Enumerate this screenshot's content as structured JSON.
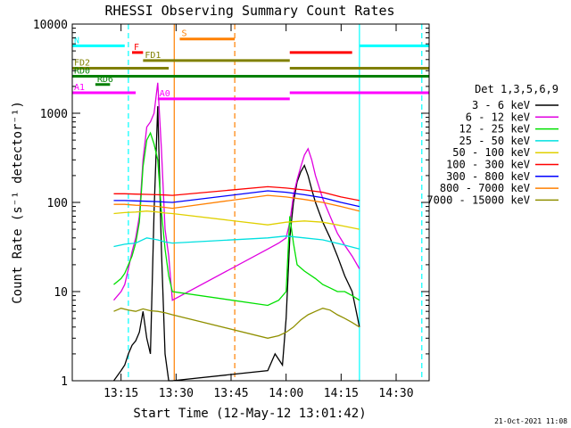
{
  "chart_data": {
    "type": "line",
    "title": "RHESSI Observing Summary Count Rates",
    "xlabel": "Start Time (12-May-12 13:01:42)",
    "ylabel": "Count Rate (s⁻¹ detector⁻¹)",
    "footer": "21-Oct-2021 11:08",
    "y_scale": "log",
    "ylim": [
      1,
      10000
    ],
    "xlim": [
      "13:01:42",
      "14:39:00"
    ],
    "x_ticks": [
      "13:15",
      "13:30",
      "13:45",
      "14:00",
      "14:15",
      "14:30"
    ],
    "y_ticks": [
      "1",
      "10",
      "100",
      "1000",
      "10000"
    ],
    "legend_title": "Det 1,3,5,6,9",
    "legend_placement": "right",
    "series": [
      {
        "name": "3 - 6 keV",
        "color": "#000000",
        "x": [
          "13:13",
          "13:15",
          "13:16",
          "13:17",
          "13:18",
          "13:19",
          "13:20",
          "13:21",
          "13:22",
          "13:23",
          "13:24",
          "13:25",
          "13:26",
          "13:27",
          "13:28",
          "13:29",
          "13:55",
          "13:57",
          "13:59",
          "14:00",
          "14:01",
          "14:02",
          "14:03",
          "14:04",
          "14:05",
          "14:06",
          "14:07",
          "14:08",
          "14:10",
          "14:12",
          "14:14",
          "14:16",
          "14:18",
          "14:20"
        ],
        "values": [
          1,
          1.3,
          1.5,
          2,
          2.5,
          2.8,
          3.5,
          6,
          3,
          2,
          80,
          1200,
          30,
          2,
          1,
          1,
          1.3,
          2,
          1.5,
          5,
          40,
          100,
          170,
          220,
          260,
          200,
          140,
          100,
          60,
          40,
          25,
          15,
          10,
          4
        ]
      },
      {
        "name": "6 - 12 keV",
        "color": "#e000e0",
        "x": [
          "13:13",
          "13:15",
          "13:16",
          "13:17",
          "13:18",
          "13:19",
          "13:20",
          "13:21",
          "13:22",
          "13:23",
          "13:24",
          "13:25",
          "13:26",
          "13:27",
          "13:28",
          "13:29",
          "13:55",
          "13:58",
          "14:00",
          "14:01",
          "14:02",
          "14:03",
          "14:04",
          "14:05",
          "14:06",
          "14:07",
          "14:08",
          "14:10",
          "14:12",
          "14:14",
          "14:16",
          "14:18",
          "14:20"
        ],
        "values": [
          8,
          10,
          12,
          18,
          28,
          40,
          70,
          300,
          700,
          800,
          1000,
          2200,
          400,
          50,
          25,
          8,
          30,
          35,
          40,
          60,
          120,
          180,
          250,
          340,
          400,
          300,
          200,
          110,
          70,
          45,
          33,
          25,
          18
        ]
      },
      {
        "name": "12 - 25 keV",
        "color": "#00e000",
        "x": [
          "13:13",
          "13:15",
          "13:16",
          "13:17",
          "13:18",
          "13:19",
          "13:20",
          "13:21",
          "13:22",
          "13:23",
          "13:24",
          "13:25",
          "13:26",
          "13:27",
          "13:28",
          "13:29",
          "13:55",
          "13:58",
          "14:00",
          "14:01",
          "14:02",
          "14:03",
          "14:05",
          "14:08",
          "14:10",
          "14:12",
          "14:14",
          "14:16",
          "14:18",
          "14:20"
        ],
        "values": [
          12,
          14,
          16,
          20,
          25,
          35,
          60,
          250,
          500,
          600,
          450,
          300,
          80,
          30,
          15,
          10,
          7,
          8,
          10,
          70,
          35,
          20,
          17,
          14,
          12,
          11,
          10,
          10,
          9,
          8
        ]
      },
      {
        "name": "25 - 50 keV",
        "color": "#00e0e0",
        "x": [
          "13:13",
          "13:16",
          "13:19",
          "13:22",
          "13:25",
          "13:27",
          "13:29",
          "13:55",
          "14:00",
          "14:05",
          "14:10",
          "14:15",
          "14:20"
        ],
        "values": [
          32,
          34,
          35,
          40,
          38,
          36,
          35,
          40,
          42,
          40,
          38,
          34,
          30
        ]
      },
      {
        "name": "50 - 100 keV",
        "color": "#e0d000",
        "x": [
          "13:13",
          "13:16",
          "13:19",
          "13:22",
          "13:25",
          "13:27",
          "13:29",
          "13:55",
          "14:00",
          "14:05",
          "14:10",
          "14:15",
          "14:20"
        ],
        "values": [
          75,
          77,
          78,
          80,
          78,
          76,
          75,
          56,
          60,
          62,
          60,
          55,
          50
        ]
      },
      {
        "name": "100 - 300 keV",
        "color": "#ff0000",
        "x": [
          "13:13",
          "13:16",
          "13:19",
          "13:22",
          "13:25",
          "13:27",
          "13:29",
          "13:55",
          "14:00",
          "14:05",
          "14:10",
          "14:15",
          "14:20"
        ],
        "values": [
          125,
          125,
          124,
          123,
          122,
          121,
          120,
          150,
          145,
          138,
          130,
          115,
          105
        ]
      },
      {
        "name": "300 - 800 keV",
        "color": "#0000ff",
        "x": [
          "13:13",
          "13:16",
          "13:19",
          "13:22",
          "13:25",
          "13:27",
          "13:29",
          "13:55",
          "14:00",
          "14:05",
          "14:10",
          "14:15",
          "14:20"
        ],
        "values": [
          105,
          105,
          104,
          103,
          102,
          101,
          100,
          135,
          130,
          122,
          113,
          100,
          90
        ]
      },
      {
        "name": "800 - 7000 keV",
        "color": "#ff8000",
        "x": [
          "13:13",
          "13:16",
          "13:19",
          "13:22",
          "13:25",
          "13:27",
          "13:29",
          "13:55",
          "14:00",
          "14:05",
          "14:10",
          "14:15",
          "14:20"
        ],
        "values": [
          95,
          95,
          93,
          92,
          90,
          88,
          86,
          120,
          115,
          108,
          100,
          90,
          80
        ]
      },
      {
        "name": "7000 - 15000 keV",
        "color": "#909000",
        "x": [
          "13:13",
          "13:15",
          "13:17",
          "13:19",
          "13:21",
          "13:23",
          "13:25",
          "13:27",
          "13:29",
          "13:55",
          "13:58",
          "14:00",
          "14:02",
          "14:04",
          "14:06",
          "14:08",
          "14:10",
          "14:12",
          "14:14",
          "14:16",
          "14:18",
          "14:20"
        ],
        "values": [
          6,
          6.5,
          6.2,
          6,
          6.4,
          6.1,
          6,
          5.8,
          5.5,
          3,
          3.2,
          3.5,
          4,
          4.8,
          5.5,
          6,
          6.5,
          6.2,
          5.5,
          5,
          4.5,
          4
        ]
      }
    ],
    "flag_bars": [
      {
        "label": "S",
        "color": "#ff8000",
        "value": 6800,
        "segments": [
          [
            "13:31",
            "13:46"
          ]
        ]
      },
      {
        "label": "N",
        "color": "#00ffff",
        "value": 5700,
        "segments": [
          [
            "13:01:42",
            "13:16"
          ],
          [
            "14:20",
            "14:39"
          ]
        ]
      },
      {
        "label": "F",
        "color": "#ff0000",
        "value": 4800,
        "segments": [
          [
            "13:18",
            "13:21"
          ],
          [
            "14:01",
            "14:18"
          ]
        ]
      },
      {
        "label": "FD1",
        "color": "#808000",
        "value": 3900,
        "segments": [
          [
            "13:21",
            "14:01"
          ]
        ]
      },
      {
        "label": "FD2",
        "color": "#808000",
        "value": 3200,
        "segments": [
          [
            "13:01:42",
            "13:28"
          ],
          [
            "14:01",
            "14:39"
          ]
        ]
      },
      {
        "label": "RD0",
        "color": "#008000",
        "value": 2600,
        "segments": [
          [
            "13:01:42",
            "14:39"
          ]
        ]
      },
      {
        "label": "RD6",
        "color": "#008000",
        "value": 2100,
        "segments": [
          [
            "13:08",
            "13:12"
          ]
        ]
      },
      {
        "label": "A1",
        "color": "#ff00ff",
        "value": 1700,
        "segments": [
          [
            "13:01:42",
            "13:19"
          ],
          [
            "14:01",
            "14:39"
          ]
        ]
      },
      {
        "label": "A0",
        "color": "#ff00ff",
        "value": 1450,
        "segments": [
          [
            "13:25",
            "14:01"
          ]
        ]
      }
    ],
    "vertical_markers": [
      {
        "time": "13:17",
        "color": "#00ffff",
        "style": "dashed"
      },
      {
        "time": "13:29:30",
        "color": "#ff8000",
        "style": "solid"
      },
      {
        "time": "13:46",
        "color": "#ff8000",
        "style": "dashed"
      },
      {
        "time": "14:20",
        "color": "#00ffff",
        "style": "solid"
      },
      {
        "time": "14:37",
        "color": "#00ffff",
        "style": "dashed"
      }
    ]
  }
}
